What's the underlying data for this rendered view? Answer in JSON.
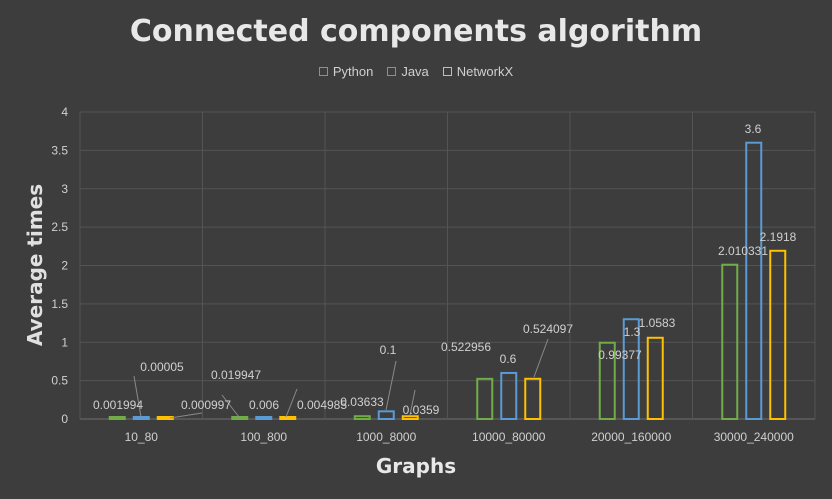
{
  "chart_data": {
    "type": "bar",
    "title": "Connected components algorithm",
    "xlabel": "Graphs",
    "ylabel": "Average times",
    "ylim": [
      0,
      4
    ],
    "yticks": [
      "0",
      "0.5",
      "1",
      "1.5",
      "2",
      "2.5",
      "3",
      "3.5",
      "4"
    ],
    "grid": true,
    "legend_position": "top-center",
    "categories": [
      "10_80",
      "100_800",
      "1000_8000",
      "10000_80000",
      "20000_160000",
      "30000_240000"
    ],
    "series": [
      {
        "name": "Python",
        "color": "#70ad47",
        "values": [
          0.001994,
          0.019947,
          0.03633,
          0.522956,
          0.99377,
          2.010331
        ],
        "labels": [
          "0.001994",
          "0.019947",
          "0.03633",
          "0.522956",
          "0.99377",
          "2.010331"
        ]
      },
      {
        "name": "Java",
        "color": "#5b9bd5",
        "values": [
          5e-05,
          0.006,
          0.1,
          0.6,
          1.3,
          3.6
        ],
        "labels": [
          "0.00005",
          "0.006",
          "0.1",
          "0.6",
          "1.3",
          "3.6"
        ]
      },
      {
        "name": "NetworkX",
        "color": "#ffc000",
        "values": [
          0.000997,
          0.004985,
          0.0359,
          0.524097,
          1.0583,
          2.1918
        ],
        "labels": [
          "0.000997",
          "0.004985",
          "0.0359",
          "0.524097",
          "1.0583",
          "2.1918"
        ]
      }
    ]
  }
}
